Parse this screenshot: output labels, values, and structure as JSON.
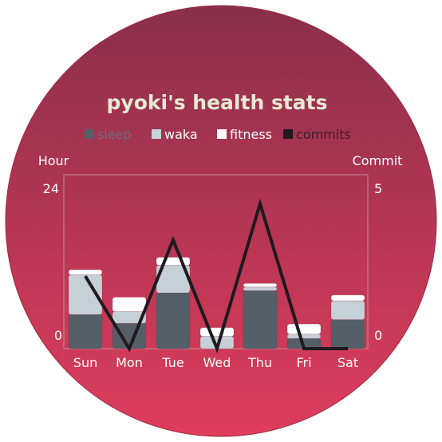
{
  "chart_data": {
    "type": "bar",
    "title": "pyoki's health stats",
    "categories": [
      "Sun",
      "Mon",
      "Tue",
      "Wed",
      "Thu",
      "Fri",
      "Sat"
    ],
    "series": [
      {
        "name": "sleep",
        "type": "bar",
        "axis": "left",
        "color": "#545f67",
        "values": [
          4.7,
          3.5,
          7.7,
          0,
          8.0,
          1.4,
          4.0
        ]
      },
      {
        "name": "waka",
        "type": "bar",
        "axis": "left",
        "color": "#c6d0d7",
        "values": [
          5.5,
          1.6,
          3.8,
          1.7,
          0.5,
          0.6,
          2.6
        ]
      },
      {
        "name": "fitness",
        "type": "bar",
        "axis": "left",
        "color": "#ffffff",
        "values": [
          0.7,
          2.0,
          1.1,
          1.2,
          0.5,
          1.4,
          0.8
        ]
      },
      {
        "name": "commits",
        "type": "line",
        "axis": "right",
        "color": "#1e1a1f",
        "values": [
          2,
          0,
          3,
          0,
          4,
          0,
          0
        ]
      }
    ],
    "y_left": {
      "label": "Hour",
      "ticks": [
        "24",
        "0"
      ],
      "range": [
        0,
        24
      ]
    },
    "y_right": {
      "label": "Commit",
      "ticks": [
        "5",
        "0"
      ],
      "range": [
        0,
        4.8
      ]
    },
    "legend": {
      "position": "top",
      "muted": [
        "sleep"
      ]
    },
    "colors": {
      "background_top": "#8a2f4b",
      "background_bottom": "#df3d5c",
      "title": "#e6ead2",
      "plot_border": "#c98a98"
    }
  }
}
